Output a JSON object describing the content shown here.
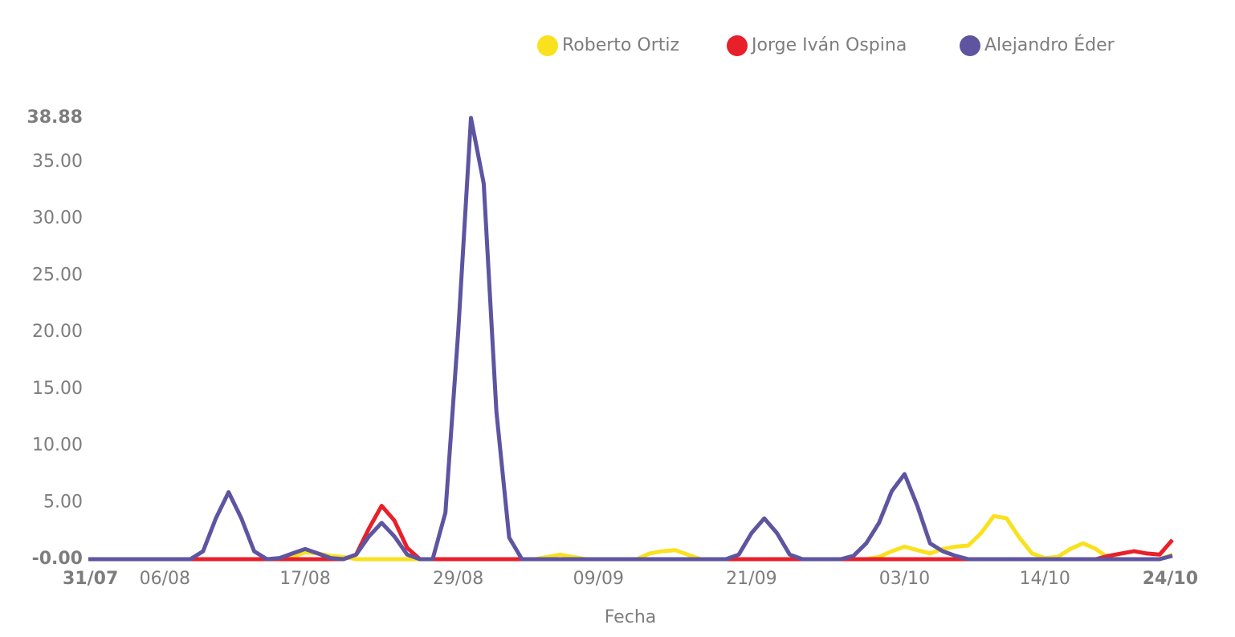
{
  "chart_data": {
    "type": "line",
    "x_label": "Fecha",
    "categories": [
      "31/07",
      null,
      null,
      null,
      null,
      null,
      "06/08",
      null,
      null,
      null,
      null,
      null,
      null,
      null,
      null,
      null,
      null,
      "17/08",
      null,
      null,
      null,
      null,
      null,
      null,
      null,
      null,
      null,
      null,
      null,
      "29/08",
      null,
      null,
      null,
      null,
      null,
      null,
      null,
      null,
      null,
      null,
      "09/09",
      null,
      null,
      null,
      null,
      null,
      null,
      null,
      null,
      null,
      null,
      null,
      "21/09",
      null,
      null,
      null,
      null,
      null,
      null,
      null,
      null,
      null,
      null,
      null,
      "03/10",
      null,
      null,
      null,
      null,
      null,
      null,
      null,
      null,
      null,
      null,
      "14/10",
      null,
      null,
      null,
      null,
      null,
      null,
      null,
      null,
      null,
      "24/10"
    ],
    "series": [
      {
        "name": "Roberto Ortiz",
        "color": "#f9e11e",
        "values": [
          0,
          0,
          0,
          0,
          0,
          0,
          0,
          0,
          0,
          0,
          0,
          0,
          0,
          0,
          0,
          0,
          0.2,
          0.6,
          0.5,
          0.3,
          0.2,
          0,
          0,
          0,
          0,
          0,
          0,
          0,
          0,
          0,
          0,
          0,
          0,
          0,
          0,
          0,
          0.2,
          0.4,
          0.2,
          0,
          0,
          0,
          0,
          0,
          0.5,
          0.7,
          0.8,
          0.4,
          0,
          0,
          0,
          0,
          0,
          0,
          0,
          0,
          0,
          0,
          0,
          0,
          0,
          0,
          0.2,
          0.7,
          1.1,
          0.8,
          0.5,
          0.9,
          1.1,
          1.2,
          2.3,
          3.8,
          3.6,
          1.9,
          0.5,
          0.1,
          0.2,
          0.9,
          1.4,
          0.9,
          0.1,
          0,
          0,
          0,
          0,
          0.4
        ]
      },
      {
        "name": "Jorge Iván Ospina",
        "color": "#e8202a",
        "values": [
          0,
          0,
          0,
          0,
          0,
          0,
          0,
          0,
          0,
          0,
          0,
          0,
          0,
          0,
          0,
          0,
          0,
          0,
          0,
          0,
          0,
          0.4,
          2.7,
          4.7,
          3.4,
          1.0,
          0,
          0,
          0,
          0,
          0,
          0,
          0,
          0,
          0,
          0,
          0,
          0,
          0,
          0,
          0,
          0,
          0,
          0,
          0,
          0,
          0,
          0,
          0,
          0,
          0,
          0,
          0,
          0,
          0,
          0,
          0,
          0,
          0,
          0,
          0,
          0,
          0,
          0,
          0,
          0,
          0,
          0,
          0,
          0,
          0,
          0,
          0,
          0,
          0,
          0,
          0,
          0,
          0,
          0,
          0.3,
          0.5,
          0.7,
          0.5,
          0.4,
          1.7
        ]
      },
      {
        "name": "Alejandro Éder",
        "color": "#5d55a0",
        "values": [
          0,
          0,
          0,
          0,
          0,
          0,
          0,
          0,
          0,
          0.7,
          3.6,
          5.9,
          3.6,
          0.7,
          0,
          0.1,
          0.5,
          0.9,
          0.5,
          0.1,
          0,
          0.4,
          2.0,
          3.2,
          2.0,
          0.4,
          0,
          0,
          4.1,
          20,
          38.88,
          33.1,
          13,
          1.9,
          0,
          0,
          0,
          0,
          0,
          0,
          0,
          0,
          0,
          0,
          0,
          0,
          0,
          0,
          0,
          0,
          0,
          0.4,
          2.3,
          3.6,
          2.3,
          0.4,
          0,
          0,
          0,
          0,
          0.3,
          1.4,
          3.2,
          6.0,
          7.5,
          4.7,
          1.4,
          0.7,
          0.3,
          0,
          0,
          0,
          0,
          0,
          0,
          0,
          0,
          0,
          0,
          0,
          0,
          0,
          0,
          0,
          0,
          0.3
        ]
      }
    ],
    "ylim": [
      0,
      38.88
    ],
    "yticks": [
      {
        "value": 0,
        "label": "-0.00"
      },
      {
        "value": 5,
        "label": "5.00"
      },
      {
        "value": 10,
        "label": "10.00"
      },
      {
        "value": 15,
        "label": "15.00"
      },
      {
        "value": 20,
        "label": "20.00"
      },
      {
        "value": 25,
        "label": "25.00"
      },
      {
        "value": 30,
        "label": "30.00"
      },
      {
        "value": 35,
        "label": "35.00"
      },
      {
        "value": 38.88,
        "label": "38.88"
      }
    ],
    "legend": "top-right"
  }
}
